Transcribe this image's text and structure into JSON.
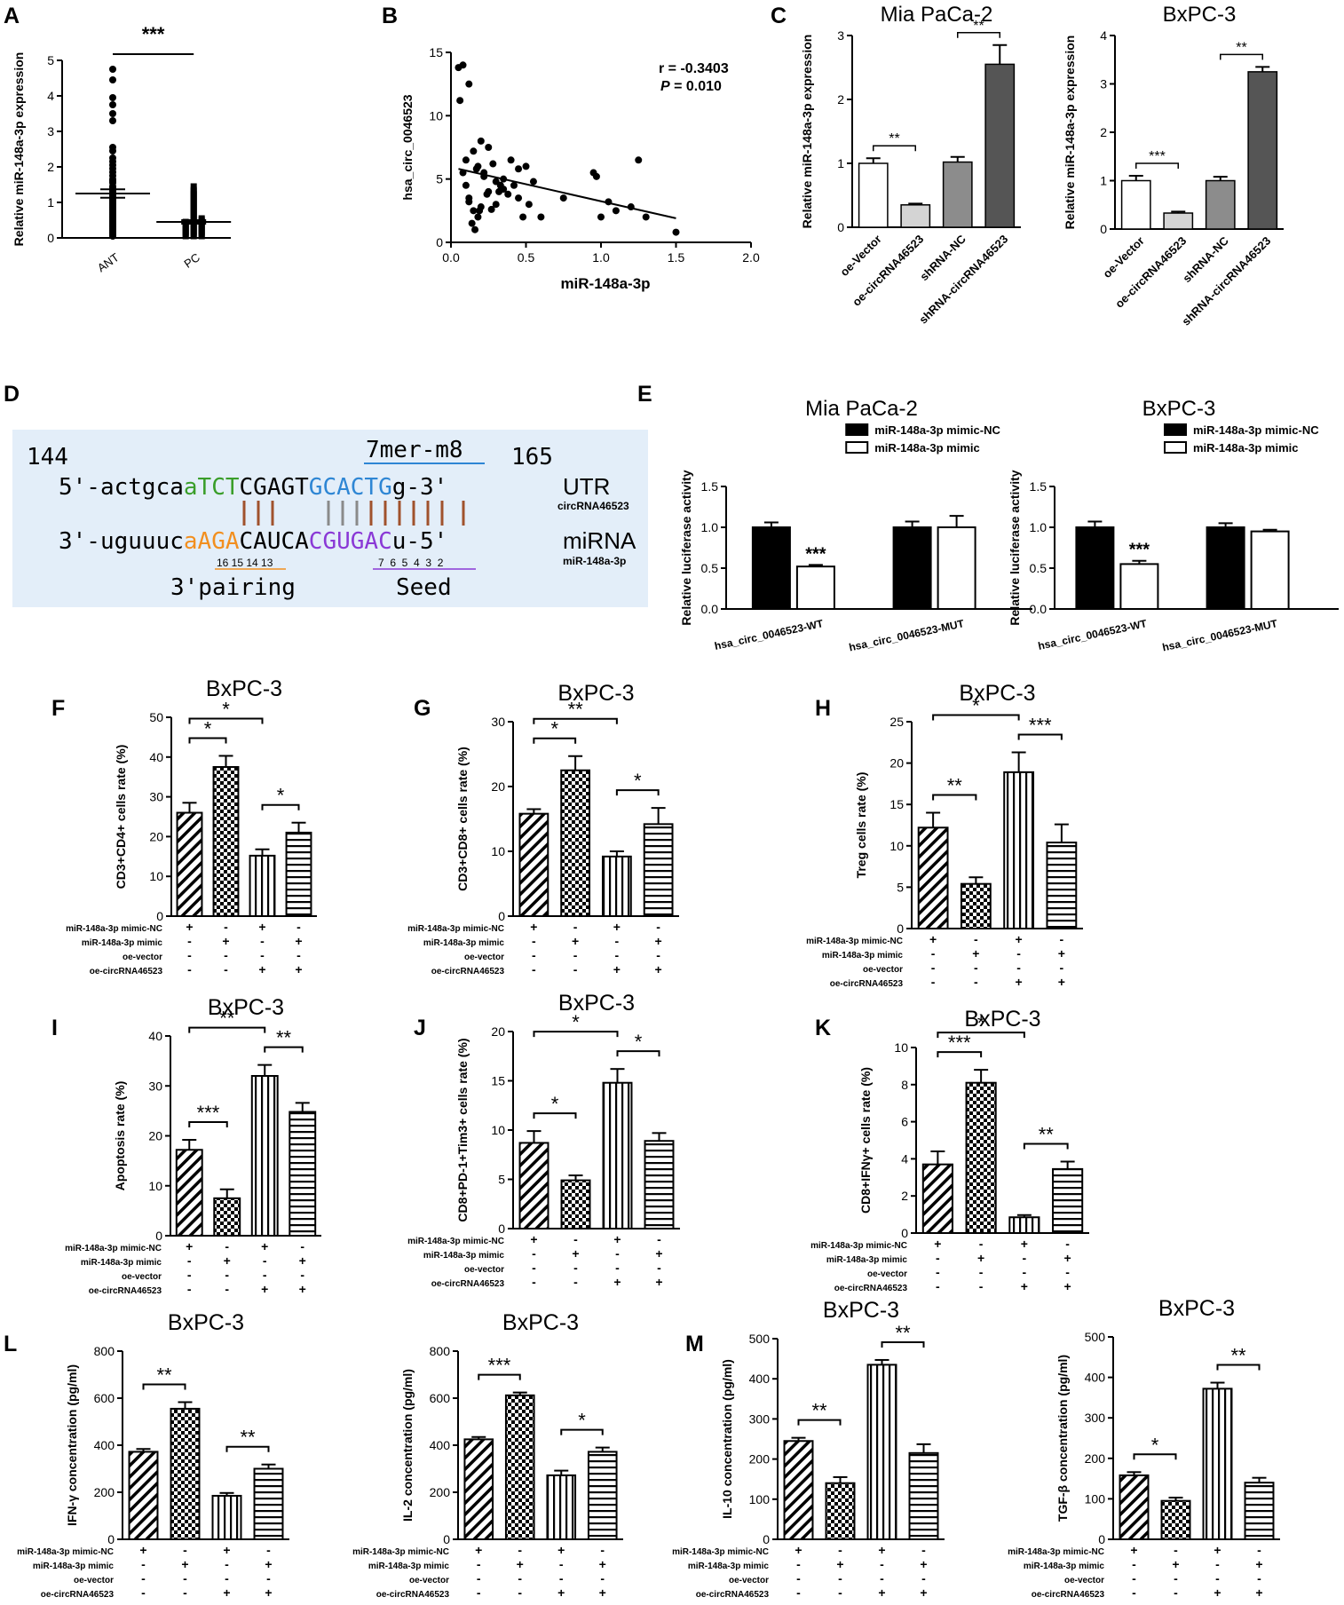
{
  "style": {
    "seq_box_fill": "#e3eef9",
    "green": "#3a9e2a",
    "blue": "#2e86d4",
    "orange": "#f28f1f",
    "purple": "#8a39d6",
    "red": "#e02020",
    "bond_brown": "#a0522d",
    "bond_gray": "#8a8a8a",
    "bar_colors_C": [
      "#ffffff",
      "#d4d4d4",
      "#8c8c8c",
      "#555555"
    ]
  },
  "chart_data": [
    {
      "id": "A",
      "type": "scatter",
      "panel_letter": "A",
      "ylabel": "Relative miR-148a-3p expression",
      "categories": [
        "ANT",
        "PC"
      ],
      "ylim": [
        0,
        5
      ],
      "yticks": [
        "0",
        "1",
        "2",
        "3",
        "4",
        "5"
      ],
      "means": [
        1.25,
        0.45
      ],
      "sem": [
        0.12,
        0.05
      ],
      "points": [
        [
          4.75,
          4.45,
          3.95,
          3.75,
          3.5,
          3.3,
          2.55,
          2.45,
          2.25,
          2.15,
          2.05,
          1.95,
          1.85,
          1.75,
          1.65,
          1.6,
          1.55,
          1.45,
          1.4,
          1.35,
          1.3,
          1.25,
          1.2,
          1.15,
          1.1,
          1.05,
          1.0,
          0.95,
          0.9,
          0.85,
          0.8,
          0.75,
          0.7,
          0.65,
          0.6,
          0.55,
          0.5,
          0.45,
          0.4,
          0.35,
          0.3,
          0.25,
          0.2,
          0.15,
          0.1,
          0.05
        ],
        [
          1.45,
          1.35,
          1.3,
          1.25,
          1.2,
          1.15,
          1.1,
          1.05,
          1.0,
          0.95,
          0.9,
          0.85,
          0.8,
          0.75,
          0.7,
          0.65,
          0.6,
          0.55,
          0.5,
          0.5,
          0.45,
          0.45,
          0.4,
          0.4,
          0.35,
          0.35,
          0.3,
          0.3,
          0.25,
          0.25,
          0.2,
          0.2,
          0.15,
          0.15,
          0.1,
          0.1,
          0.05,
          0.05,
          0.3,
          0.2,
          0.1,
          0.4,
          0.25,
          0.15,
          0.05,
          0.35,
          0.45,
          0.55
        ]
      ],
      "sig": "***"
    },
    {
      "id": "B",
      "type": "scatter",
      "panel_letter": "B",
      "xlabel": "miR-148a-3p",
      "ylabel": "hsa_circ_0046523",
      "xlim": [
        0,
        2
      ],
      "ylim": [
        0,
        15
      ],
      "xticks": [
        "0.0",
        "0.5",
        "1.0",
        "1.5",
        "2.0"
      ],
      "yticks": [
        "0",
        "5",
        "10",
        "15"
      ],
      "r_text": "r = -0.3403",
      "p_label": "P",
      "p_value": "= 0.010",
      "fit": [
        [
          0.05,
          5.8
        ],
        [
          1.5,
          1.9
        ]
      ],
      "x": [
        0.05,
        0.08,
        0.06,
        0.12,
        0.1,
        0.15,
        0.2,
        0.18,
        0.25,
        0.22,
        0.28,
        0.3,
        0.35,
        0.32,
        0.4,
        0.45,
        0.5,
        0.42,
        0.38,
        0.15,
        0.12,
        0.18,
        0.2,
        0.1,
        0.08,
        0.25,
        0.3,
        0.55,
        0.6,
        0.75,
        0.95,
        0.97,
        1.05,
        1.1,
        1.2,
        1.25,
        1.3,
        1.0,
        1.5,
        0.14,
        0.16,
        0.19,
        0.22,
        0.35,
        0.48,
        0.12,
        0.17,
        0.24,
        0.27,
        0.33,
        0.45,
        0.52
      ],
      "y": [
        13.8,
        14.0,
        11.2,
        12.5,
        6.5,
        7.2,
        8.0,
        6.0,
        7.5,
        5.5,
        6.2,
        4.8,
        5.0,
        4.0,
        6.5,
        5.8,
        6.0,
        4.5,
        3.8,
        2.5,
        3.5,
        2.0,
        2.8,
        4.5,
        5.5,
        4.0,
        3.0,
        4.8,
        2.0,
        3.5,
        5.5,
        5.2,
        3.2,
        2.5,
        2.8,
        6.5,
        2.0,
        2.0,
        0.8,
        1.5,
        1.0,
        2.5,
        5.2,
        4.2,
        2.0,
        3.2,
        5.8,
        3.8,
        2.6,
        4.5,
        3.5,
        3.0
      ]
    },
    {
      "id": "C1",
      "type": "bar",
      "panel_letter": "C",
      "title": "Mia PaCa-2",
      "ylabel": "Relative  miR-148a-3p expression",
      "categories": [
        "oe-Vector",
        "oe-circRNA46523",
        "shRNA-NC",
        "shRNA-circRNA46523"
      ],
      "values": [
        1.0,
        0.35,
        1.02,
        2.55
      ],
      "errors": [
        0.08,
        0.02,
        0.08,
        0.3
      ],
      "ylim": [
        0,
        3
      ],
      "yticks": [
        "0",
        "1",
        "2",
        "3"
      ],
      "sig": [
        {
          "a": 0,
          "b": 1,
          "label": "**"
        },
        {
          "a": 2,
          "b": 3,
          "label": "**"
        }
      ]
    },
    {
      "id": "C2",
      "type": "bar",
      "title": "BxPC-3",
      "ylabel": "Relative  miR-148a-3p expression",
      "categories": [
        "oe-Vector",
        "oe-circRNA46523",
        "shRNA-NC",
        "shRNA-circRNA46523"
      ],
      "values": [
        1.0,
        0.33,
        1.0,
        3.25
      ],
      "errors": [
        0.1,
        0.03,
        0.08,
        0.1
      ],
      "ylim": [
        0,
        4
      ],
      "yticks": [
        "0",
        "1",
        "2",
        "3",
        "4"
      ],
      "sig": [
        {
          "a": 0,
          "b": 1,
          "label": "***"
        },
        {
          "a": 2,
          "b": 3,
          "label": "**"
        }
      ]
    },
    {
      "id": "E1",
      "type": "bar",
      "panel_letter": "E",
      "title": "Mia PaCa-2",
      "ylabel": "Relative luciferase activity",
      "groups": [
        "hsa_circ_0046523-WT",
        "hsa_circ_0046523-MUT"
      ],
      "series": [
        {
          "name": "miR-148a-3p mimic-NC",
          "values": [
            1.0,
            1.0
          ],
          "errors": [
            0.06,
            0.07
          ]
        },
        {
          "name": "miR-148a-3p mimic",
          "values": [
            0.52,
            1.0
          ],
          "errors": [
            0.02,
            0.14
          ]
        }
      ],
      "ylim": [
        0,
        1.5
      ],
      "yticks": [
        "0.0",
        "0.5",
        "1.0",
        "1.5"
      ],
      "annotations": [
        "***",
        ""
      ]
    },
    {
      "id": "E2",
      "type": "bar",
      "title": "BxPC-3",
      "ylabel": "Relative luciferase activity",
      "groups": [
        "hsa_circ_0046523-WT",
        "hsa_circ_0046523-MUT"
      ],
      "series": [
        {
          "name": "miR-148a-3p mimic-NC",
          "values": [
            1.0,
            1.0
          ],
          "errors": [
            0.07,
            0.05
          ]
        },
        {
          "name": "miR-148a-3p mimic",
          "values": [
            0.55,
            0.95
          ],
          "errors": [
            0.04,
            0.02
          ]
        }
      ],
      "ylim": [
        0,
        1.5
      ],
      "yticks": [
        "0.0",
        "0.5",
        "1.0",
        "1.5"
      ],
      "annotations": [
        "***",
        ""
      ]
    },
    {
      "id": "F",
      "type": "bar",
      "panel_letter": "F",
      "title": "BxPC-3",
      "ylabel": "CD3+CD4+ cells rate (%)",
      "values": [
        26,
        37.5,
        15.2,
        21
      ],
      "errors": [
        2.5,
        2.8,
        1.6,
        2.5
      ],
      "ylim": [
        0,
        50
      ],
      "yticks": [
        "0",
        "10",
        "20",
        "30",
        "40",
        "50"
      ],
      "sig": [
        {
          "a": 0,
          "b": 1,
          "label": "*"
        },
        {
          "a": 0,
          "b": 2,
          "label": "*"
        },
        {
          "a": 2,
          "b": 3,
          "label": "*"
        }
      ]
    },
    {
      "id": "G",
      "type": "bar",
      "panel_letter": "G",
      "title": "BxPC-3",
      "ylabel": "CD3+CD8+ cells rate (%)",
      "values": [
        15.8,
        22.5,
        9.2,
        14.2
      ],
      "errors": [
        0.7,
        2.2,
        0.8,
        2.5
      ],
      "ylim": [
        0,
        30
      ],
      "yticks": [
        "0",
        "10",
        "20",
        "30"
      ],
      "sig": [
        {
          "a": 0,
          "b": 1,
          "label": "*"
        },
        {
          "a": 0,
          "b": 2,
          "label": "**"
        },
        {
          "a": 2,
          "b": 3,
          "label": "*"
        }
      ]
    },
    {
      "id": "H",
      "type": "bar",
      "panel_letter": "H",
      "title": "BxPC-3",
      "ylabel": "Treg cells rate (%)",
      "values": [
        12.2,
        5.4,
        18.9,
        10.4
      ],
      "errors": [
        1.8,
        0.8,
        2.4,
        2.2
      ],
      "ylim": [
        0,
        25
      ],
      "yticks": [
        "0",
        "5",
        "10",
        "15",
        "20",
        "25"
      ],
      "sig": [
        {
          "a": 0,
          "b": 1,
          "label": "**"
        },
        {
          "a": 0,
          "b": 2,
          "label": "*"
        },
        {
          "a": 2,
          "b": 3,
          "label": "***"
        }
      ]
    },
    {
      "id": "I",
      "type": "bar",
      "panel_letter": "I",
      "title": "BxPC-3",
      "ylabel": "Apoptosis rate (%)",
      "values": [
        17.2,
        7.5,
        32,
        24.8
      ],
      "errors": [
        2.0,
        1.8,
        2.2,
        1.8
      ],
      "ylim": [
        0,
        40
      ],
      "yticks": [
        "0",
        "10",
        "20",
        "30",
        "40"
      ],
      "sig": [
        {
          "a": 0,
          "b": 1,
          "label": "***"
        },
        {
          "a": 0,
          "b": 2,
          "label": "**"
        },
        {
          "a": 2,
          "b": 3,
          "label": "**"
        }
      ]
    },
    {
      "id": "J",
      "type": "bar",
      "panel_letter": "J",
      "title": "BxPC-3",
      "ylabel": "CD8+PD-1+Tim3+ cells rate (%)",
      "values": [
        8.7,
        4.9,
        14.8,
        8.9
      ],
      "errors": [
        1.2,
        0.5,
        1.4,
        0.8
      ],
      "ylim": [
        0,
        20
      ],
      "yticks": [
        "0",
        "5",
        "10",
        "15",
        "20"
      ],
      "sig": [
        {
          "a": 0,
          "b": 1,
          "label": "*"
        },
        {
          "a": 0,
          "b": 2,
          "label": "*"
        },
        {
          "a": 2,
          "b": 3,
          "label": "*"
        }
      ]
    },
    {
      "id": "K",
      "type": "bar",
      "panel_letter": "K",
      "title": "BxPC-3",
      "ylabel": "CD8+IFNγ+ cells rate (%)",
      "values": [
        3.7,
        8.1,
        0.85,
        3.45
      ],
      "errors": [
        0.7,
        0.7,
        0.12,
        0.4
      ],
      "ylim": [
        0,
        10
      ],
      "yticks": [
        "0",
        "2",
        "4",
        "6",
        "8",
        "10"
      ],
      "sig": [
        {
          "a": 0,
          "b": 1,
          "label": "***"
        },
        {
          "a": 0,
          "b": 2,
          "label": "*"
        },
        {
          "a": 2,
          "b": 3,
          "label": "**"
        }
      ]
    },
    {
      "id": "L1",
      "type": "bar",
      "panel_letter": "L",
      "title": "BxPC-3",
      "ylabel": "IFN-γ concentration (pg/ml)",
      "values": [
        372,
        555,
        185,
        300
      ],
      "errors": [
        12,
        28,
        12,
        18
      ],
      "ylim": [
        0,
        800
      ],
      "yticks": [
        "0",
        "200",
        "400",
        "600",
        "800"
      ],
      "sig": [
        {
          "a": 0,
          "b": 1,
          "label": "**"
        },
        {
          "a": 2,
          "b": 3,
          "label": "**"
        }
      ]
    },
    {
      "id": "L2",
      "type": "bar",
      "title": "BxPC-3",
      "ylabel": "IL-2 concentration (pg/ml)",
      "values": [
        425,
        612,
        272,
        372
      ],
      "errors": [
        10,
        12,
        20,
        18
      ],
      "ylim": [
        0,
        800
      ],
      "yticks": [
        "0",
        "200",
        "400",
        "600",
        "800"
      ],
      "sig": [
        {
          "a": 0,
          "b": 1,
          "label": "***"
        },
        {
          "a": 2,
          "b": 3,
          "label": "*"
        }
      ]
    },
    {
      "id": "M1",
      "type": "bar",
      "panel_letter": "M",
      "title": "BxPC-3",
      "ylabel": "IL-10 concentration (pg/ml)",
      "values": [
        245,
        140,
        435,
        215
      ],
      "errors": [
        8,
        15,
        12,
        22
      ],
      "ylim": [
        0,
        500
      ],
      "yticks": [
        "0",
        "100",
        "200",
        "300",
        "400",
        "500"
      ],
      "sig": [
        {
          "a": 0,
          "b": 1,
          "label": "**"
        },
        {
          "a": 2,
          "b": 3,
          "label": "**"
        }
      ]
    },
    {
      "id": "M2",
      "type": "bar",
      "title": "BxPC-3",
      "ylabel": "TGF-β concentration (pg/ml)",
      "values": [
        158,
        95,
        372,
        140
      ],
      "errors": [
        8,
        8,
        15,
        12
      ],
      "ylim": [
        0,
        500
      ],
      "yticks": [
        "0",
        "100",
        "200",
        "300",
        "400",
        "500"
      ],
      "sig": [
        {
          "a": 0,
          "b": 1,
          "label": "*"
        },
        {
          "a": 2,
          "b": 3,
          "label": "**"
        }
      ]
    }
  ],
  "treatment_table": {
    "rows": [
      "miR-148a-3p mimic-NC",
      "miR-148a-3p mimic",
      "oe-vector",
      "oe-circRNA46523"
    ],
    "signs": [
      [
        "+",
        "-",
        "+",
        "-"
      ],
      [
        "-",
        "+",
        "-",
        "+"
      ],
      [
        "-",
        "-",
        "-",
        "-"
      ],
      [
        "-",
        "-",
        "+",
        "+"
      ]
    ]
  },
  "panel_d": {
    "letter": "D",
    "pos_start": "144",
    "pos_end": "165",
    "site_type": "7mer-m8",
    "utr": {
      "prefix": "5'-actgca",
      "seg_green": "aTCT",
      "seg_mid": "CGAGT",
      "seg_blue": "GCACTG",
      "suffix": "g-3'"
    },
    "utr_label": "UTR",
    "circ_name": "circRNA46523",
    "mirna": {
      "prefix": "3'-uguuuc",
      "seg_orange": "aAGA",
      "seg_mid": "CAUCA",
      "seg_purple": "CGUGAC",
      "suffix": "u-5'"
    },
    "mirna_label": "miRNA",
    "mirna_name": "miR-148a-3p",
    "pairing_numbers": "16 15 14 13",
    "seed_numbers": "7  6  5  4  3  2",
    "pairing_label": "3'pairing",
    "seed_label": "Seed"
  }
}
